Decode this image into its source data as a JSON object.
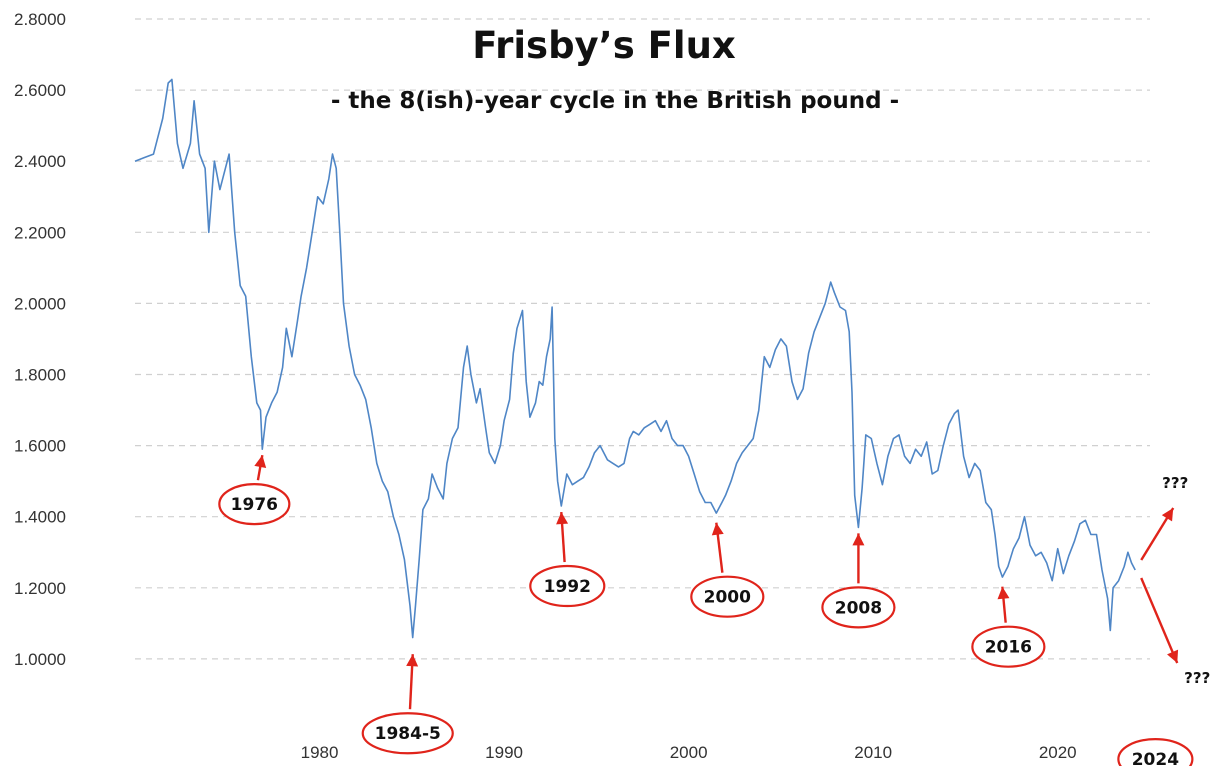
{
  "chart_data": {
    "type": "line",
    "title": "Frisby’s Flux",
    "subtitle": "- the 8(ish)-year cycle in the British pound -",
    "xlabel": "",
    "ylabel": "",
    "xlim": [
      1970,
      2025
    ],
    "ylim": [
      0.8,
      2.8
    ],
    "grid": "horizontal dashed",
    "y_ticks": [
      "1.0000",
      "1.2000",
      "1.4000",
      "1.6000",
      "1.8000",
      "2.0000",
      "2.2000",
      "2.4000",
      "2.6000",
      "2.8000"
    ],
    "x_ticks": [
      "1980",
      "1990",
      "2000",
      "2010",
      "2020"
    ],
    "line_color": "#4f86c6",
    "annotation_color": "#e0241b",
    "series": [
      {
        "values": [
          [
            1970.0,
            2.4
          ],
          [
            1970.5,
            2.41
          ],
          [
            1971.0,
            2.42
          ],
          [
            1971.5,
            2.52
          ],
          [
            1971.8,
            2.62
          ],
          [
            1972.0,
            2.63
          ],
          [
            1972.3,
            2.45
          ],
          [
            1972.6,
            2.38
          ],
          [
            1973.0,
            2.45
          ],
          [
            1973.2,
            2.57
          ],
          [
            1973.5,
            2.42
          ],
          [
            1973.8,
            2.38
          ],
          [
            1974.0,
            2.2
          ],
          [
            1974.3,
            2.4
          ],
          [
            1974.6,
            2.32
          ],
          [
            1974.9,
            2.38
          ],
          [
            1975.1,
            2.42
          ],
          [
            1975.4,
            2.2
          ],
          [
            1975.7,
            2.05
          ],
          [
            1976.0,
            2.02
          ],
          [
            1976.3,
            1.85
          ],
          [
            1976.6,
            1.72
          ],
          [
            1976.8,
            1.7
          ],
          [
            1976.9,
            1.59
          ],
          [
            1977.1,
            1.68
          ],
          [
            1977.4,
            1.72
          ],
          [
            1977.7,
            1.75
          ],
          [
            1978.0,
            1.82
          ],
          [
            1978.2,
            1.93
          ],
          [
            1978.5,
            1.85
          ],
          [
            1978.8,
            1.95
          ],
          [
            1979.0,
            2.02
          ],
          [
            1979.3,
            2.1
          ],
          [
            1979.6,
            2.2
          ],
          [
            1979.9,
            2.3
          ],
          [
            1980.2,
            2.28
          ],
          [
            1980.5,
            2.35
          ],
          [
            1980.7,
            2.42
          ],
          [
            1980.9,
            2.38
          ],
          [
            1981.1,
            2.2
          ],
          [
            1981.3,
            2.0
          ],
          [
            1981.6,
            1.88
          ],
          [
            1981.9,
            1.8
          ],
          [
            1982.2,
            1.77
          ],
          [
            1982.5,
            1.73
          ],
          [
            1982.8,
            1.65
          ],
          [
            1983.1,
            1.55
          ],
          [
            1983.4,
            1.5
          ],
          [
            1983.7,
            1.47
          ],
          [
            1984.0,
            1.4
          ],
          [
            1984.3,
            1.35
          ],
          [
            1984.6,
            1.28
          ],
          [
            1984.9,
            1.15
          ],
          [
            1985.05,
            1.06
          ],
          [
            1985.2,
            1.15
          ],
          [
            1985.4,
            1.28
          ],
          [
            1985.6,
            1.42
          ],
          [
            1985.9,
            1.45
          ],
          [
            1986.1,
            1.52
          ],
          [
            1986.4,
            1.48
          ],
          [
            1986.7,
            1.45
          ],
          [
            1986.9,
            1.55
          ],
          [
            1987.2,
            1.62
          ],
          [
            1987.5,
            1.65
          ],
          [
            1987.8,
            1.82
          ],
          [
            1988.0,
            1.88
          ],
          [
            1988.2,
            1.8
          ],
          [
            1988.5,
            1.72
          ],
          [
            1988.7,
            1.76
          ],
          [
            1989.0,
            1.65
          ],
          [
            1989.2,
            1.58
          ],
          [
            1989.5,
            1.55
          ],
          [
            1989.8,
            1.6
          ],
          [
            1990.0,
            1.67
          ],
          [
            1990.3,
            1.73
          ],
          [
            1990.5,
            1.86
          ],
          [
            1990.7,
            1.93
          ],
          [
            1991.0,
            1.98
          ],
          [
            1991.2,
            1.78
          ],
          [
            1991.4,
            1.68
          ],
          [
            1991.7,
            1.72
          ],
          [
            1991.9,
            1.78
          ],
          [
            1992.1,
            1.77
          ],
          [
            1992.3,
            1.85
          ],
          [
            1992.5,
            1.9
          ],
          [
            1992.6,
            1.99
          ],
          [
            1992.75,
            1.62
          ],
          [
            1992.9,
            1.5
          ],
          [
            1993.1,
            1.43
          ],
          [
            1993.4,
            1.52
          ],
          [
            1993.7,
            1.49
          ],
          [
            1994.0,
            1.5
          ],
          [
            1994.3,
            1.51
          ],
          [
            1994.6,
            1.54
          ],
          [
            1994.9,
            1.58
          ],
          [
            1995.2,
            1.6
          ],
          [
            1995.6,
            1.56
          ],
          [
            1995.9,
            1.55
          ],
          [
            1996.2,
            1.54
          ],
          [
            1996.5,
            1.55
          ],
          [
            1996.8,
            1.62
          ],
          [
            1997.0,
            1.64
          ],
          [
            1997.3,
            1.63
          ],
          [
            1997.6,
            1.65
          ],
          [
            1997.9,
            1.66
          ],
          [
            1998.2,
            1.67
          ],
          [
            1998.5,
            1.64
          ],
          [
            1998.8,
            1.67
          ],
          [
            1999.1,
            1.62
          ],
          [
            1999.4,
            1.6
          ],
          [
            1999.7,
            1.6
          ],
          [
            2000.0,
            1.57
          ],
          [
            2000.3,
            1.52
          ],
          [
            2000.6,
            1.47
          ],
          [
            2000.9,
            1.44
          ],
          [
            2001.2,
            1.44
          ],
          [
            2001.5,
            1.41
          ],
          [
            2001.8,
            1.44
          ],
          [
            2002.0,
            1.46
          ],
          [
            2002.3,
            1.5
          ],
          [
            2002.6,
            1.55
          ],
          [
            2002.9,
            1.58
          ],
          [
            2003.2,
            1.6
          ],
          [
            2003.5,
            1.62
          ],
          [
            2003.8,
            1.7
          ],
          [
            2004.1,
            1.85
          ],
          [
            2004.4,
            1.82
          ],
          [
            2004.7,
            1.87
          ],
          [
            2005.0,
            1.9
          ],
          [
            2005.3,
            1.88
          ],
          [
            2005.6,
            1.78
          ],
          [
            2005.9,
            1.73
          ],
          [
            2006.2,
            1.76
          ],
          [
            2006.5,
            1.86
          ],
          [
            2006.8,
            1.92
          ],
          [
            2007.1,
            1.96
          ],
          [
            2007.4,
            2.0
          ],
          [
            2007.7,
            2.06
          ],
          [
            2007.9,
            2.03
          ],
          [
            2008.2,
            1.99
          ],
          [
            2008.5,
            1.98
          ],
          [
            2008.7,
            1.92
          ],
          [
            2008.85,
            1.75
          ],
          [
            2009.0,
            1.46
          ],
          [
            2009.2,
            1.37
          ],
          [
            2009.4,
            1.48
          ],
          [
            2009.6,
            1.63
          ],
          [
            2009.9,
            1.62
          ],
          [
            2010.2,
            1.55
          ],
          [
            2010.5,
            1.49
          ],
          [
            2010.8,
            1.57
          ],
          [
            2011.1,
            1.62
          ],
          [
            2011.4,
            1.63
          ],
          [
            2011.7,
            1.57
          ],
          [
            2012.0,
            1.55
          ],
          [
            2012.3,
            1.59
          ],
          [
            2012.6,
            1.57
          ],
          [
            2012.9,
            1.61
          ],
          [
            2013.2,
            1.52
          ],
          [
            2013.5,
            1.53
          ],
          [
            2013.8,
            1.6
          ],
          [
            2014.1,
            1.66
          ],
          [
            2014.4,
            1.69
          ],
          [
            2014.6,
            1.7
          ],
          [
            2014.9,
            1.57
          ],
          [
            2015.2,
            1.51
          ],
          [
            2015.5,
            1.55
          ],
          [
            2015.8,
            1.53
          ],
          [
            2016.1,
            1.44
          ],
          [
            2016.4,
            1.42
          ],
          [
            2016.6,
            1.35
          ],
          [
            2016.8,
            1.26
          ],
          [
            2017.0,
            1.23
          ],
          [
            2017.3,
            1.26
          ],
          [
            2017.6,
            1.31
          ],
          [
            2017.9,
            1.34
          ],
          [
            2018.2,
            1.4
          ],
          [
            2018.5,
            1.32
          ],
          [
            2018.8,
            1.29
          ],
          [
            2019.1,
            1.3
          ],
          [
            2019.4,
            1.27
          ],
          [
            2019.7,
            1.22
          ],
          [
            2020.0,
            1.31
          ],
          [
            2020.3,
            1.24
          ],
          [
            2020.6,
            1.29
          ],
          [
            2020.9,
            1.33
          ],
          [
            2021.2,
            1.38
          ],
          [
            2021.5,
            1.39
          ],
          [
            2021.8,
            1.35
          ],
          [
            2022.1,
            1.35
          ],
          [
            2022.4,
            1.25
          ],
          [
            2022.7,
            1.17
          ],
          [
            2022.85,
            1.08
          ],
          [
            2023.0,
            1.2
          ],
          [
            2023.3,
            1.22
          ],
          [
            2023.6,
            1.26
          ],
          [
            2023.8,
            1.3
          ],
          [
            2024.0,
            1.27
          ],
          [
            2024.2,
            1.25
          ]
        ]
      }
    ],
    "annotations": [
      {
        "label": "1976",
        "target": [
          1976.9,
          1.59
        ]
      },
      {
        "label": "1984-5",
        "target": [
          1985.05,
          1.03
        ]
      },
      {
        "label": "1992",
        "target": [
          1993.1,
          1.43
        ]
      },
      {
        "label": "2000",
        "target": [
          2001.5,
          1.4
        ]
      },
      {
        "label": "2008",
        "target": [
          2009.2,
          1.37
        ]
      },
      {
        "label": "2016",
        "target": [
          2017.0,
          1.22
        ]
      },
      {
        "label": "2024",
        "target": [
          2025.4,
          1.05
        ]
      }
    ],
    "projections": [
      {
        "label": "???",
        "direction": "up"
      },
      {
        "label": "???",
        "direction": "down"
      }
    ]
  }
}
